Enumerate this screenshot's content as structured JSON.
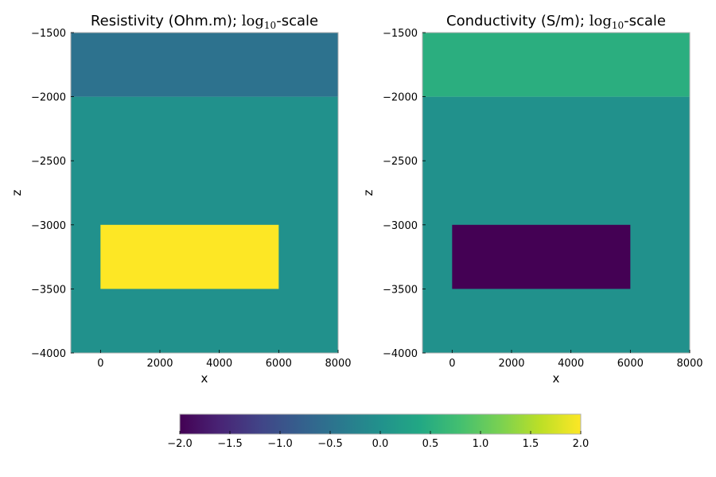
{
  "chart_data": [
    {
      "type": "heatmap",
      "title": "Resistivity (Ohm.m); ",
      "title_math": "log",
      "title_math_sub": "10",
      "title_suffix": "-scale",
      "xlabel": "x",
      "ylabel": "z",
      "xlim": [
        -1000,
        8000
      ],
      "ylim": [
        -4000,
        -1500
      ],
      "xticks": [
        0,
        2000,
        4000,
        6000,
        8000
      ],
      "yticks": [
        -1500,
        -2000,
        -2500,
        -3000,
        -3500,
        -4000
      ],
      "xtick_labels": [
        "0",
        "2000",
        "4000",
        "6000",
        "8000"
      ],
      "ytick_labels": [
        "−1500",
        "−2000",
        "−2500",
        "−3000",
        "−3500",
        "−4000"
      ],
      "regions": [
        {
          "name": "background",
          "x": [
            -1000,
            8000
          ],
          "z": [
            -4000,
            -2000
          ],
          "value": 0.0
        },
        {
          "name": "overburden",
          "x": [
            -1000,
            8000
          ],
          "z": [
            -2000,
            -1500
          ],
          "value": -0.5
        },
        {
          "name": "block",
          "x": [
            0,
            6000
          ],
          "z": [
            -3500,
            -3000
          ],
          "value": 2.0
        }
      ]
    },
    {
      "type": "heatmap",
      "title": "Conductivity (S/m); ",
      "title_math": "log",
      "title_math_sub": "10",
      "title_suffix": "-scale",
      "xlabel": "x",
      "ylabel": "z",
      "xlim": [
        -1000,
        8000
      ],
      "ylim": [
        -4000,
        -1500
      ],
      "xticks": [
        0,
        2000,
        4000,
        6000,
        8000
      ],
      "yticks": [
        -1500,
        -2000,
        -2500,
        -3000,
        -3500,
        -4000
      ],
      "xtick_labels": [
        "0",
        "2000",
        "4000",
        "6000",
        "8000"
      ],
      "ytick_labels": [
        "−1500",
        "−2000",
        "−2500",
        "−3000",
        "−3500",
        "−4000"
      ],
      "regions": [
        {
          "name": "background",
          "x": [
            -1000,
            8000
          ],
          "z": [
            -4000,
            -2000
          ],
          "value": 0.0
        },
        {
          "name": "overburden",
          "x": [
            -1000,
            8000
          ],
          "z": [
            -2000,
            -1500
          ],
          "value": 0.5
        },
        {
          "name": "block",
          "x": [
            0,
            6000
          ],
          "z": [
            -3500,
            -3000
          ],
          "value": -2.0
        }
      ]
    }
  ],
  "colorbar": {
    "colormap": "viridis",
    "range": [
      -2.0,
      2.0
    ],
    "ticks": [
      -2.0,
      -1.5,
      -1.0,
      -0.5,
      0.0,
      0.5,
      1.0,
      1.5,
      2.0
    ],
    "tick_labels": [
      "−2.0",
      "−1.5",
      "−1.0",
      "−0.5",
      "0.0",
      "0.5",
      "1.0",
      "1.5",
      "2.0"
    ],
    "orientation": "horizontal",
    "placement": "bottom-center"
  }
}
